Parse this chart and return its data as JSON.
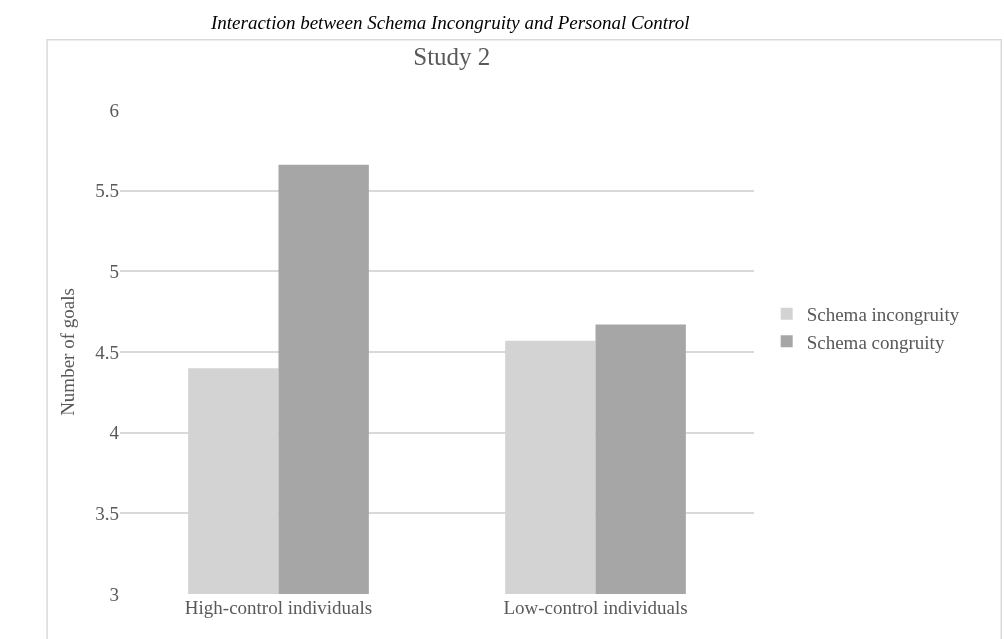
{
  "chart_data": {
    "type": "bar",
    "title": "Interaction between Schema Incongruity and Personal Control",
    "subtitle": "Study 2",
    "ylabel": "Number of goals",
    "categories": [
      "High-control individuals",
      "Low-control individuals"
    ],
    "series": [
      {
        "name": "Schema incongruity",
        "color": "#d3d3d3",
        "values": [
          4.4,
          4.57
        ]
      },
      {
        "name": "Schema congruity",
        "color": "#a6a6a6",
        "values": [
          5.66,
          4.67
        ]
      }
    ],
    "ylim": [
      3,
      6
    ],
    "yticks": [
      3,
      3.5,
      4,
      4.5,
      5,
      5.5,
      6
    ],
    "grid": "y",
    "legend": "right"
  }
}
